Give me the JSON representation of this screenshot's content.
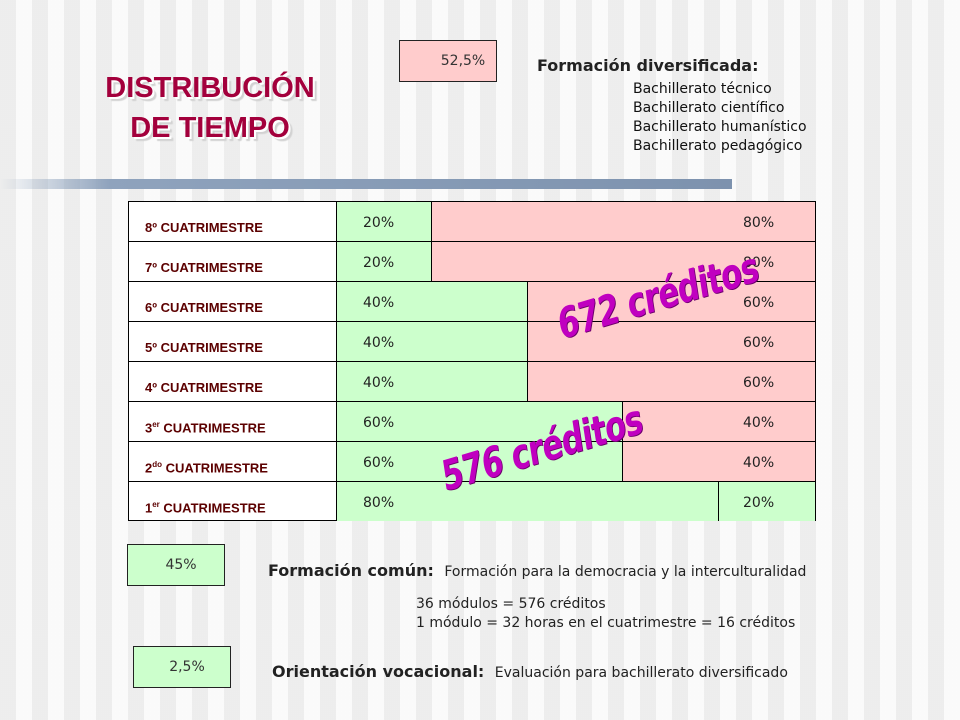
{
  "title": {
    "line1": "DISTRIBUCIÓN",
    "line2": "DE TIEMPO"
  },
  "top_box": {
    "value": "52,5%"
  },
  "diversificada": {
    "heading": "Formación diversificada:",
    "items": [
      "Bachillerato técnico",
      "Bachillerato científico",
      "Bachillerato humanístico",
      "Bachillerato pedagógico"
    ]
  },
  "rows": [
    {
      "label": "8º CUATRIMESTRE",
      "green": 20,
      "green_label": "20%",
      "pink_label": "80%"
    },
    {
      "label": "7º CUATRIMESTRE",
      "green": 20,
      "green_label": "20%",
      "pink_label": "80%"
    },
    {
      "label": "6º CUATRIMESTRE",
      "green": 40,
      "green_label": "40%",
      "pink_label": "60%"
    },
    {
      "label": "5º CUATRIMESTRE",
      "green": 40,
      "green_label": "40%",
      "pink_label": "60%"
    },
    {
      "label": "4º CUATRIMESTRE",
      "green": 40,
      "green_label": "40%",
      "pink_label": "60%"
    },
    {
      "label_num": "3",
      "label_sup": "er",
      "label_rest": " CUATRIMESTRE",
      "green": 60,
      "green_label": "60%",
      "pink_label": "40%"
    },
    {
      "label_num": "2",
      "label_sup": "do",
      "label_rest": " CUATRIMESTRE",
      "green": 60,
      "green_label": "60%",
      "pink_label": "40%"
    },
    {
      "label_num": "1",
      "label_sup": "er",
      "label_rest": " CUATRIMESTRE",
      "green": 80,
      "green_label": "80%",
      "pink_label": "20%"
    }
  ],
  "credits": {
    "upper": "672 créditos",
    "lower": "576 créditos"
  },
  "comun": {
    "box_value": "45%",
    "heading": "Formación común:",
    "description": "Formación para la democracia y la interculturalidad",
    "note1": "36 módulos = 576 créditos",
    "note2": "1 módulo = 32 horas en el cuatrimestre = 16 créditos"
  },
  "orientacion": {
    "box_value": "2,5%",
    "heading": "Orientación vocacional:",
    "description": "Evaluación para bachillerato diversificado"
  },
  "colors": {
    "green": "#ccffcc",
    "pink": "#ffcccc",
    "title": "#a3003c",
    "credits": "#c000c0"
  }
}
